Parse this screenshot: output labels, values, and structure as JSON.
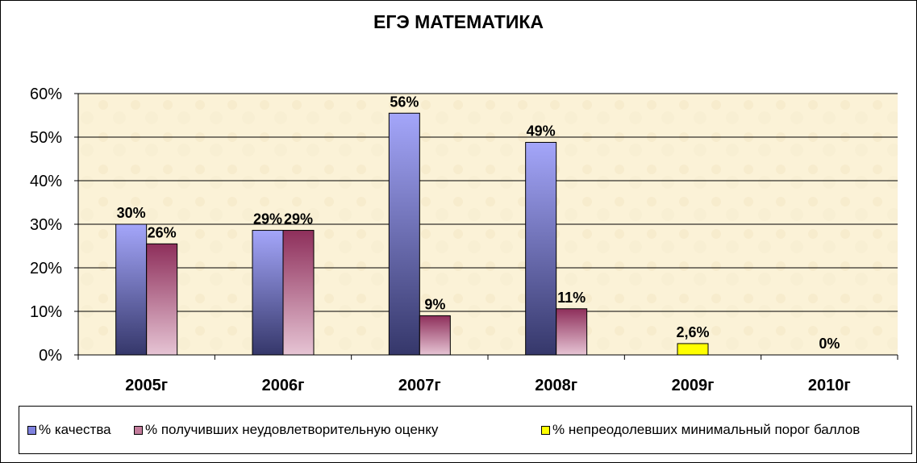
{
  "chart_data": {
    "type": "bar",
    "title": "ЕГЭ МАТЕМАТИКА",
    "categories": [
      "2005г",
      "2006г",
      "2007г",
      "2008г",
      "2009г",
      "2010г"
    ],
    "yticks": [
      "0%",
      "10%",
      "20%",
      "30%",
      "40%",
      "50%",
      "60%"
    ],
    "ylim": [
      0,
      60
    ],
    "grid": true,
    "legend_position": "bottom",
    "series": [
      {
        "name": "% качества",
        "values": [
          30,
          28.6,
          55.5,
          48.8,
          null,
          null
        ],
        "labels": [
          "30%",
          "29%",
          "56%",
          "49%",
          "",
          ""
        ],
        "color": "#9a9cf0"
      },
      {
        "name": "% получивших неудовлетворительную оценку",
        "values": [
          25.5,
          28.6,
          9,
          10.6,
          null,
          null
        ],
        "labels": [
          "26%",
          "29%",
          "9%",
          "11%",
          "",
          ""
        ],
        "color": "#9b3a66"
      },
      {
        "name": "% непреодолевших минимальный порог баллов",
        "values": [
          null,
          null,
          null,
          null,
          2.6,
          0
        ],
        "labels": [
          "",
          "",
          "",
          "",
          "2,6%",
          "0%"
        ],
        "color": "#ffff00"
      }
    ]
  },
  "colors": {
    "plot_background": "#fbf2d7",
    "grid": "#000000",
    "series1_dark": "#3b3d70",
    "series2_light": "#e3bfd0"
  }
}
